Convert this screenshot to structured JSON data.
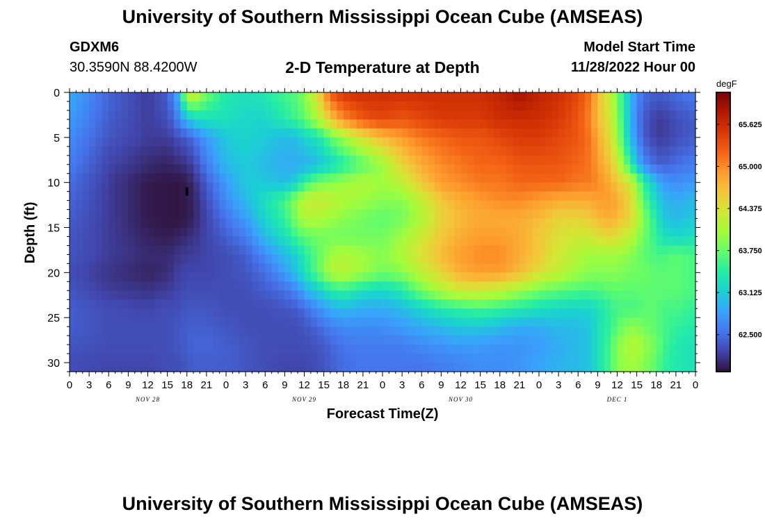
{
  "page": {
    "title": "University of Southern Mississippi Ocean Cube (AMSEAS)",
    "title_repeat": "University of Southern Mississippi Ocean Cube (AMSEAS)",
    "station": "GDXM6",
    "coords": "30.3590N  88.4200W",
    "subtitle": "2-D Temperature at Depth",
    "model_start_label": "Model Start Time",
    "model_start_value": "11/28/2022 Hour 00"
  },
  "chart_data": {
    "type": "heatmap",
    "xlabel": "Forecast Time(Z)",
    "ylabel": "Depth (ft)",
    "xlim": [
      0,
      96
    ],
    "ylim": [
      31,
      0
    ],
    "x_tick_labels": [
      "0",
      "3",
      "6",
      "9",
      "12",
      "15",
      "18",
      "21",
      "0",
      "3",
      "6",
      "9",
      "12",
      "15",
      "18",
      "21",
      "0",
      "3",
      "6",
      "9",
      "12",
      "15",
      "18",
      "21",
      "0",
      "3",
      "6",
      "9",
      "12",
      "15",
      "18",
      "21",
      "0"
    ],
    "y_tick_labels": [
      "0",
      "5",
      "10",
      "15",
      "20",
      "25",
      "30"
    ],
    "y_ticks": [
      0,
      5,
      10,
      15,
      20,
      25,
      30
    ],
    "date_labels": [
      "NOV 28",
      "NOV 29",
      "NOV 30",
      "DEC 1"
    ],
    "date_positions_hours": [
      12,
      36,
      60,
      84
    ],
    "colorbar": {
      "units": "degF",
      "min": 61.95,
      "max": 66.1,
      "tick_values": [
        65.625,
        65.0,
        64.375,
        63.75,
        63.125,
        62.5
      ],
      "tick_labels": [
        "65.625",
        "65.000",
        "64.375",
        "63.750",
        "63.125",
        "62.500"
      ],
      "colors": [
        "#30123b",
        "#4145ab",
        "#4675ed",
        "#39a2fc",
        "#1bcfd4",
        "#24eca6",
        "#61fc6c",
        "#a4fc3b",
        "#d1e834",
        "#f3c63a",
        "#fe9b2d",
        "#f36315",
        "#d93806",
        "#b11901",
        "#7a0403"
      ]
    },
    "temperature_degF": {
      "hours": [
        0,
        6,
        12,
        15,
        16.5,
        18,
        19,
        21,
        24,
        27,
        30,
        33,
        35,
        36,
        38,
        40,
        42,
        45,
        48,
        51,
        54,
        57,
        60,
        63,
        66,
        69,
        72,
        75,
        78,
        80,
        81,
        83,
        84,
        86,
        87,
        88,
        90,
        91,
        93,
        96
      ],
      "depths_ft": [
        0,
        3,
        5,
        8,
        10,
        12,
        14,
        16,
        18,
        20,
        22,
        24,
        26,
        28,
        30,
        31
      ],
      "values": [
        [
          62.9,
          62.45,
          62.2,
          62.4,
          62.9,
          64.2,
          64.4,
          63.8,
          63.4,
          63.3,
          63.4,
          63.6,
          63.7,
          63.9,
          64.4,
          65.3,
          65.55,
          65.6,
          65.6,
          65.6,
          65.6,
          65.6,
          65.6,
          65.6,
          65.7,
          65.9,
          65.7,
          65.6,
          65.4,
          65.1,
          64.7,
          64.2,
          63.8,
          63.0,
          62.7,
          62.5,
          62.4,
          62.4,
          62.5,
          62.6
        ],
        [
          62.8,
          62.4,
          62.2,
          62.3,
          62.6,
          63.0,
          63.2,
          63.3,
          63.3,
          63.2,
          63.2,
          63.4,
          63.6,
          63.7,
          64.1,
          64.6,
          65.0,
          65.3,
          65.4,
          65.3,
          65.4,
          65.5,
          65.5,
          65.5,
          65.6,
          65.6,
          65.6,
          65.5,
          65.3,
          65.0,
          64.7,
          64.3,
          63.9,
          63.0,
          62.6,
          62.4,
          62.2,
          62.2,
          62.3,
          62.4
        ],
        [
          62.7,
          62.35,
          62.2,
          62.2,
          62.3,
          62.4,
          62.5,
          62.8,
          63.1,
          63.2,
          63.1,
          63.0,
          63.0,
          63.2,
          63.3,
          63.7,
          64.0,
          64.4,
          64.7,
          64.9,
          65.1,
          65.2,
          65.3,
          65.3,
          65.4,
          65.5,
          65.5,
          65.4,
          65.3,
          65.1,
          64.8,
          64.4,
          64.0,
          63.0,
          62.7,
          62.4,
          62.2,
          62.2,
          62.3,
          62.4
        ],
        [
          62.6,
          62.25,
          62.1,
          62.05,
          62.1,
          62.15,
          62.25,
          62.6,
          63.0,
          63.1,
          63.0,
          62.9,
          62.9,
          62.9,
          63.0,
          63.2,
          63.4,
          63.7,
          64.0,
          64.5,
          64.8,
          65.0,
          65.1,
          65.2,
          65.2,
          65.3,
          65.3,
          65.3,
          65.2,
          65.1,
          64.9,
          64.6,
          64.3,
          63.5,
          63.0,
          62.7,
          62.45,
          62.4,
          62.5,
          62.6
        ],
        [
          62.5,
          62.2,
          62.0,
          61.98,
          61.97,
          62.0,
          62.1,
          62.4,
          62.8,
          63.1,
          63.1,
          63.0,
          63.2,
          63.5,
          63.8,
          63.9,
          64.0,
          64.1,
          64.0,
          64.2,
          64.6,
          64.9,
          65.0,
          65.1,
          65.1,
          65.2,
          65.2,
          65.2,
          65.1,
          65.1,
          65.0,
          64.8,
          64.6,
          64.3,
          64.0,
          63.5,
          63.0,
          62.8,
          62.7,
          62.8
        ],
        [
          62.45,
          62.2,
          62.0,
          61.98,
          61.97,
          62.0,
          62.05,
          62.3,
          62.7,
          63.0,
          63.3,
          63.6,
          64.0,
          64.2,
          64.3,
          64.2,
          64.1,
          64.0,
          63.9,
          63.9,
          64.2,
          64.6,
          64.8,
          64.9,
          65.0,
          65.0,
          64.9,
          64.8,
          64.8,
          64.8,
          64.9,
          64.9,
          64.8,
          64.5,
          64.1,
          63.7,
          63.2,
          63.0,
          62.9,
          63.0
        ],
        [
          62.4,
          62.2,
          62.0,
          61.98,
          61.97,
          62.0,
          62.05,
          62.25,
          62.55,
          62.8,
          63.2,
          63.5,
          63.9,
          64.1,
          64.1,
          64.0,
          63.9,
          63.8,
          63.7,
          63.8,
          64.1,
          64.5,
          64.7,
          64.8,
          64.8,
          64.8,
          64.7,
          64.5,
          64.5,
          64.6,
          64.7,
          64.8,
          64.7,
          64.5,
          64.2,
          63.9,
          63.4,
          63.1,
          63.0,
          63.1
        ],
        [
          62.35,
          62.2,
          62.05,
          62.0,
          62.05,
          62.1,
          62.15,
          62.25,
          62.4,
          62.6,
          63.0,
          63.3,
          63.6,
          63.7,
          63.8,
          63.8,
          63.8,
          63.8,
          63.8,
          64.0,
          64.3,
          64.6,
          64.8,
          64.9,
          64.9,
          64.8,
          64.6,
          64.4,
          64.3,
          64.3,
          64.4,
          64.5,
          64.4,
          64.2,
          64.0,
          63.8,
          63.5,
          63.3,
          63.2,
          63.3
        ],
        [
          62.35,
          62.2,
          62.1,
          62.1,
          62.15,
          62.2,
          62.2,
          62.25,
          62.3,
          62.4,
          62.7,
          63.0,
          63.2,
          63.4,
          63.7,
          64.0,
          64.1,
          64.0,
          63.9,
          64.1,
          64.4,
          64.7,
          64.9,
          65.0,
          65.0,
          64.8,
          64.6,
          64.3,
          64.1,
          64.0,
          64.0,
          64.0,
          64.0,
          63.9,
          63.8,
          63.7,
          63.6,
          63.6,
          63.7,
          63.6
        ],
        [
          62.3,
          62.15,
          62.05,
          62.1,
          62.2,
          62.25,
          62.25,
          62.25,
          62.3,
          62.35,
          62.5,
          62.8,
          63.1,
          63.3,
          63.7,
          64.1,
          64.2,
          64.0,
          63.8,
          63.9,
          64.2,
          64.5,
          64.8,
          64.9,
          64.9,
          64.7,
          64.4,
          64.2,
          64.0,
          63.9,
          63.9,
          63.9,
          63.9,
          63.8,
          63.8,
          63.8,
          63.7,
          63.7,
          63.7,
          63.6
        ],
        [
          62.35,
          62.2,
          62.15,
          62.2,
          62.25,
          62.3,
          62.3,
          62.3,
          62.3,
          62.3,
          62.4,
          62.5,
          62.7,
          62.9,
          63.1,
          63.4,
          63.5,
          63.3,
          63.2,
          63.4,
          63.8,
          64.1,
          64.3,
          64.3,
          64.2,
          64.0,
          63.8,
          63.7,
          63.6,
          63.6,
          63.6,
          63.7,
          63.7,
          63.7,
          63.7,
          63.7,
          63.7,
          63.7,
          63.7,
          63.6
        ],
        [
          62.4,
          62.3,
          62.25,
          62.3,
          62.3,
          62.35,
          62.35,
          62.35,
          62.3,
          62.3,
          62.3,
          62.35,
          62.4,
          62.5,
          62.7,
          62.9,
          63.0,
          62.9,
          62.9,
          63.0,
          63.2,
          63.4,
          63.5,
          63.6,
          63.5,
          63.4,
          63.3,
          63.2,
          63.2,
          63.2,
          63.3,
          63.5,
          63.6,
          63.6,
          63.6,
          63.7,
          63.7,
          63.6,
          63.6,
          63.5
        ],
        [
          62.4,
          62.3,
          62.3,
          62.3,
          62.35,
          62.4,
          62.4,
          62.4,
          62.35,
          62.3,
          62.3,
          62.3,
          62.3,
          62.35,
          62.45,
          62.6,
          62.7,
          62.7,
          62.7,
          62.8,
          62.9,
          63.0,
          63.1,
          63.1,
          63.0,
          62.9,
          62.9,
          63.0,
          63.0,
          63.1,
          63.3,
          63.5,
          63.7,
          63.9,
          63.9,
          63.8,
          63.7,
          63.6,
          63.5,
          63.4
        ],
        [
          62.35,
          62.3,
          62.3,
          62.3,
          62.35,
          62.4,
          62.45,
          62.45,
          62.4,
          62.35,
          62.3,
          62.3,
          62.3,
          62.3,
          62.35,
          62.45,
          62.55,
          62.6,
          62.6,
          62.6,
          62.7,
          62.75,
          62.8,
          62.8,
          62.75,
          62.75,
          62.8,
          62.9,
          63.0,
          63.1,
          63.3,
          63.6,
          63.9,
          64.1,
          64.1,
          64.0,
          63.8,
          63.6,
          63.4,
          63.3
        ],
        [
          62.3,
          62.25,
          62.25,
          62.3,
          62.3,
          62.35,
          62.4,
          62.4,
          62.4,
          62.35,
          62.3,
          62.25,
          62.25,
          62.25,
          62.3,
          62.4,
          62.5,
          62.55,
          62.55,
          62.55,
          62.55,
          62.6,
          62.65,
          62.7,
          62.7,
          62.75,
          62.85,
          62.95,
          63.0,
          63.1,
          63.3,
          63.6,
          63.9,
          64.0,
          64.0,
          63.9,
          63.7,
          63.5,
          63.4,
          63.3
        ],
        [
          62.3,
          62.25,
          62.25,
          62.3,
          62.3,
          62.35,
          62.4,
          62.4,
          62.4,
          62.35,
          62.3,
          62.25,
          62.25,
          62.25,
          62.3,
          62.4,
          62.5,
          62.55,
          62.55,
          62.55,
          62.55,
          62.6,
          62.65,
          62.7,
          62.7,
          62.75,
          62.85,
          62.95,
          63.0,
          63.1,
          63.3,
          63.6,
          63.9,
          64.0,
          64.0,
          63.9,
          63.7,
          63.5,
          63.4,
          63.3
        ]
      ]
    }
  }
}
